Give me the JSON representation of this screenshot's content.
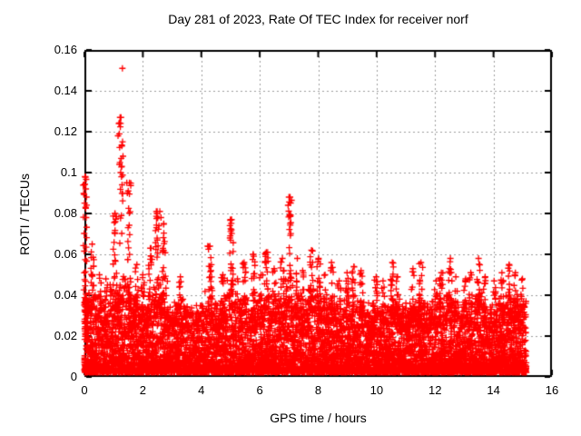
{
  "page": {
    "background": "#ffffff",
    "text_color": "#000000"
  },
  "chart_data": {
    "type": "scatter",
    "title": "Day 281 of 2023, Rate Of TEC Index for receiver norf",
    "xlabel": "GPS time / hours",
    "ylabel": "ROTI / TECUs",
    "xlim": [
      0,
      16
    ],
    "ylim": [
      0,
      0.16
    ],
    "xticks": [
      0,
      2,
      4,
      6,
      8,
      10,
      12,
      14,
      16
    ],
    "xticklabels": [
      "0",
      "2",
      "4",
      "6",
      "8",
      "10",
      "12",
      "14",
      "16"
    ],
    "yticks": [
      0,
      0.02,
      0.04,
      0.06,
      0.08,
      0.1,
      0.12,
      0.14,
      0.16
    ],
    "yticklabels": [
      "0",
      "0.02",
      "0.04",
      "0.06",
      "0.08",
      "0.1",
      "0.12",
      "0.14",
      "0.16"
    ],
    "grid": {
      "shown": true,
      "style": "dotted",
      "color": "#9c9c9c"
    },
    "legend": {
      "shown": false
    },
    "series": [
      {
        "name": "ROTI",
        "marker": "+",
        "color": "#ff0000",
        "marker_size_px": 7
      }
    ],
    "data_time_range": [
      0,
      15.15
    ],
    "band": {
      "description": "dense noise band of 1-min ROTI values across all hours; nearly solid 0.002-0.015 TECU, dense to ~0.03, sparse to ~0.04",
      "y_floor": 0.002,
      "y_core_max": 0.02,
      "y_typical_max": 0.04,
      "points_per_bin": 120
    },
    "envelope": {
      "step_hours": 0.25,
      "start_hour": 0.0,
      "max_roti": [
        0.098,
        0.065,
        0.05,
        0.048,
        0.08,
        0.127,
        0.095,
        0.055,
        0.05,
        0.063,
        0.081,
        0.075,
        0.045,
        0.049,
        0.042,
        0.04,
        0.046,
        0.064,
        0.044,
        0.05,
        0.077,
        0.048,
        0.056,
        0.06,
        0.05,
        0.061,
        0.053,
        0.058,
        0.088,
        0.058,
        0.052,
        0.062,
        0.058,
        0.05,
        0.056,
        0.047,
        0.051,
        0.054,
        0.052,
        0.045,
        0.049,
        0.047,
        0.056,
        0.049,
        0.046,
        0.053,
        0.056,
        0.043,
        0.047,
        0.051,
        0.058,
        0.049,
        0.048,
        0.051,
        0.058,
        0.049,
        0.047,
        0.051,
        0.055,
        0.051,
        0.048
      ]
    },
    "outliers": [
      [
        1.3,
        0.151
      ],
      [
        1.22,
        0.127
      ],
      [
        1.18,
        0.124
      ],
      [
        1.15,
        0.118
      ],
      [
        1.28,
        0.113
      ],
      [
        1.32,
        0.108
      ],
      [
        1.2,
        0.104
      ],
      [
        1.24,
        0.1
      ],
      [
        0.03,
        0.098
      ],
      [
        0.05,
        0.092
      ],
      [
        0.07,
        0.088
      ],
      [
        0.04,
        0.083
      ],
      [
        0.06,
        0.078
      ],
      [
        1.45,
        0.095
      ],
      [
        1.47,
        0.09
      ],
      [
        1.05,
        0.08
      ],
      [
        7.0,
        0.088
      ],
      [
        6.97,
        0.084
      ],
      [
        7.02,
        0.079
      ],
      [
        2.58,
        0.081
      ],
      [
        2.62,
        0.078
      ],
      [
        2.55,
        0.074
      ],
      [
        5.0,
        0.077
      ],
      [
        5.03,
        0.072
      ],
      [
        4.98,
        0.068
      ],
      [
        4.22,
        0.064
      ],
      [
        2.28,
        0.063
      ],
      [
        7.77,
        0.062
      ],
      [
        6.27,
        0.061
      ],
      [
        5.77,
        0.06
      ]
    ]
  }
}
